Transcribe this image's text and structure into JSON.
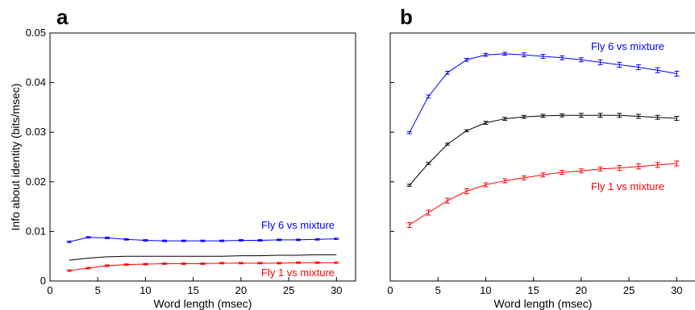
{
  "chart_data": [
    {
      "type": "line",
      "panel_label": "a",
      "xlabel": "Word length (msec)",
      "ylabel": "Info about identity (bits/msec)",
      "xlim": [
        0,
        32
      ],
      "ylim": [
        0,
        0.05
      ],
      "x_ticks": [
        "0",
        "5",
        "10",
        "15",
        "20",
        "25",
        "30"
      ],
      "y_ticks": [
        "0",
        "0.01",
        "0.02",
        "0.03",
        "0.04",
        "0.05"
      ],
      "x": [
        2,
        4,
        6,
        8,
        10,
        12,
        14,
        16,
        18,
        20,
        22,
        24,
        26,
        28,
        30
      ],
      "series": [
        {
          "name": "Fly 6 vs mixture",
          "color": "#0000ff",
          "error_bars": true,
          "values": [
            0.0079,
            0.0088,
            0.0087,
            0.0084,
            0.0082,
            0.0081,
            0.0081,
            0.0081,
            0.0081,
            0.0082,
            0.0082,
            0.0083,
            0.0083,
            0.0084,
            0.0085
          ]
        },
        {
          "name": "",
          "color": "#000000",
          "error_bars": false,
          "values": [
            0.0042,
            0.0046,
            0.0049,
            0.005,
            0.005,
            0.005,
            0.005,
            0.005,
            0.005,
            0.0051,
            0.0051,
            0.0052,
            0.0052,
            0.0053,
            0.0053
          ]
        },
        {
          "name": "Fly 1 vs mixture",
          "color": "#ff0000",
          "error_bars": true,
          "values": [
            0.0021,
            0.0026,
            0.0031,
            0.0033,
            0.0034,
            0.0035,
            0.0035,
            0.0035,
            0.0036,
            0.0036,
            0.0036,
            0.0036,
            0.0037,
            0.0037,
            0.0037
          ]
        }
      ],
      "annotations": [
        {
          "text": "Fly 6 vs mixture",
          "color": "#0000ff"
        },
        {
          "text": "Fly 1 vs mixture",
          "color": "#ff0000"
        }
      ]
    },
    {
      "type": "line",
      "panel_label": "b",
      "xlabel": "Word length (msec)",
      "ylabel": "",
      "xlim": [
        0,
        32
      ],
      "ylim": [
        0,
        0.05
      ],
      "x_ticks": [
        "0",
        "5",
        "10",
        "15",
        "20",
        "25",
        "30"
      ],
      "y_ticks": [
        "",
        "",
        "",
        "",
        "",
        ""
      ],
      "x": [
        2,
        4,
        6,
        8,
        10,
        12,
        14,
        16,
        18,
        20,
        22,
        24,
        26,
        28,
        30
      ],
      "series": [
        {
          "name": "Fly 6 vs mixture",
          "color": "#0000ff",
          "error_bars": true,
          "values": [
            0.0299,
            0.0372,
            0.042,
            0.0446,
            0.0456,
            0.0458,
            0.0456,
            0.0453,
            0.045,
            0.0446,
            0.0441,
            0.0436,
            0.0431,
            0.0425,
            0.0418
          ],
          "errors": [
            0.0002,
            0.0003,
            0.0003,
            0.0003,
            0.0003,
            0.0003,
            0.0004,
            0.0004,
            0.0004,
            0.0004,
            0.0005,
            0.0005,
            0.0005,
            0.0005,
            0.0005
          ]
        },
        {
          "name": "",
          "color": "#000000",
          "error_bars": true,
          "values": [
            0.0193,
            0.0237,
            0.0276,
            0.0303,
            0.0319,
            0.0327,
            0.0331,
            0.0333,
            0.0334,
            0.0334,
            0.0334,
            0.0334,
            0.0332,
            0.033,
            0.0328
          ],
          "errors": [
            0.0002,
            0.0002,
            0.0002,
            0.0002,
            0.0003,
            0.0003,
            0.0003,
            0.0003,
            0.0003,
            0.0004,
            0.0004,
            0.0004,
            0.0004,
            0.0004,
            0.0004
          ]
        },
        {
          "name": "Fly 1 vs mixture",
          "color": "#ff0000",
          "error_bars": true,
          "values": [
            0.0113,
            0.0138,
            0.0162,
            0.0181,
            0.0194,
            0.0202,
            0.0208,
            0.0214,
            0.0219,
            0.0222,
            0.0226,
            0.0228,
            0.0231,
            0.0234,
            0.0237
          ],
          "errors": [
            0.0005,
            0.0005,
            0.0005,
            0.0005,
            0.0004,
            0.0004,
            0.0004,
            0.0004,
            0.0004,
            0.0004,
            0.0004,
            0.0005,
            0.0005,
            0.0005,
            0.0005
          ]
        }
      ],
      "annotations": [
        {
          "text": "Fly 6 vs mixture",
          "color": "#0000ff"
        },
        {
          "text": "Fly 1 vs mixture",
          "color": "#ff0000"
        }
      ]
    }
  ]
}
